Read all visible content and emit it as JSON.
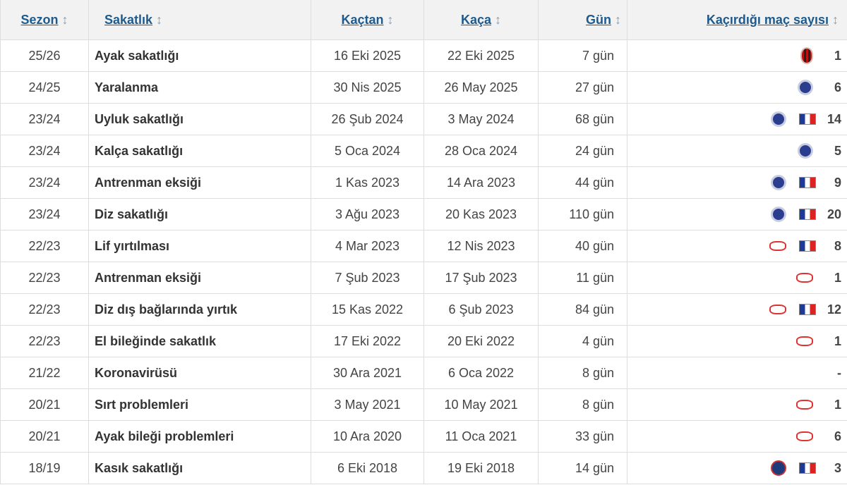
{
  "headers": {
    "season": "Sezon",
    "injury": "Sakatlık",
    "from": "Kaçtan",
    "until": "Kaça",
    "days": "Gün",
    "games_missed": "Kaçırdığı maç sayısı"
  },
  "sort_icon": "↕",
  "rows": [
    {
      "season": "25/26",
      "injury": "Ayak sakatlığı",
      "from": "16 Eki 2025",
      "until": "22 Eki 2025",
      "days": "7 gün",
      "club": "milan",
      "flag": false,
      "missed": "1"
    },
    {
      "season": "24/25",
      "injury": "Yaralanma",
      "from": "30 Nis 2025",
      "until": "26 May 2025",
      "days": "27 gün",
      "club": "chelsea",
      "flag": false,
      "missed": "6"
    },
    {
      "season": "23/24",
      "injury": "Uyluk sakatlığı",
      "from": "26 Şub 2024",
      "until": "3 May 2024",
      "days": "68 gün",
      "club": "chelsea",
      "flag": true,
      "missed": "14"
    },
    {
      "season": "23/24",
      "injury": "Kalça sakatlığı",
      "from": "5 Oca 2024",
      "until": "28 Oca 2024",
      "days": "24 gün",
      "club": "chelsea",
      "flag": false,
      "missed": "5"
    },
    {
      "season": "23/24",
      "injury": "Antrenman eksiği",
      "from": "1 Kas 2023",
      "until": "14 Ara 2023",
      "days": "44 gün",
      "club": "chelsea",
      "flag": true,
      "missed": "9"
    },
    {
      "season": "23/24",
      "injury": "Diz sakatlığı",
      "from": "3 Ağu 2023",
      "until": "20 Kas 2023",
      "days": "110 gün",
      "club": "chelsea",
      "flag": true,
      "missed": "20"
    },
    {
      "season": "22/23",
      "injury": "Lif yırtılması",
      "from": "4 Mar 2023",
      "until": "12 Nis 2023",
      "days": "40 gün",
      "club": "leipzig",
      "flag": true,
      "missed": "8"
    },
    {
      "season": "22/23",
      "injury": "Antrenman eksiği",
      "from": "7 Şub 2023",
      "until": "17 Şub 2023",
      "days": "11 gün",
      "club": "leipzig",
      "flag": false,
      "missed": "1"
    },
    {
      "season": "22/23",
      "injury": "Diz dış bağlarında yırtık",
      "from": "15 Kas 2022",
      "until": "6 Şub 2023",
      "days": "84 gün",
      "club": "leipzig",
      "flag": true,
      "missed": "12"
    },
    {
      "season": "22/23",
      "injury": "El bileğinde sakatlık",
      "from": "17 Eki 2022",
      "until": "20 Eki 2022",
      "days": "4 gün",
      "club": "leipzig",
      "flag": false,
      "missed": "1"
    },
    {
      "season": "21/22",
      "injury": "Koronavirüsü",
      "from": "30 Ara 2021",
      "until": "6 Oca 2022",
      "days": "8 gün",
      "club": "none",
      "flag": false,
      "missed": "-"
    },
    {
      "season": "20/21",
      "injury": "Sırt problemleri",
      "from": "3 May 2021",
      "until": "10 May 2021",
      "days": "8 gün",
      "club": "leipzig",
      "flag": false,
      "missed": "1"
    },
    {
      "season": "20/21",
      "injury": "Ayak bileği problemleri",
      "from": "10 Ara 2020",
      "until": "11 Oca 2021",
      "days": "33 gün",
      "club": "leipzig",
      "flag": false,
      "missed": "6"
    },
    {
      "season": "18/19",
      "injury": "Kasık sakatlığı",
      "from": "6 Eki 2018",
      "until": "19 Eki 2018",
      "days": "14 gün",
      "club": "psg",
      "flag": true,
      "missed": "3"
    }
  ]
}
